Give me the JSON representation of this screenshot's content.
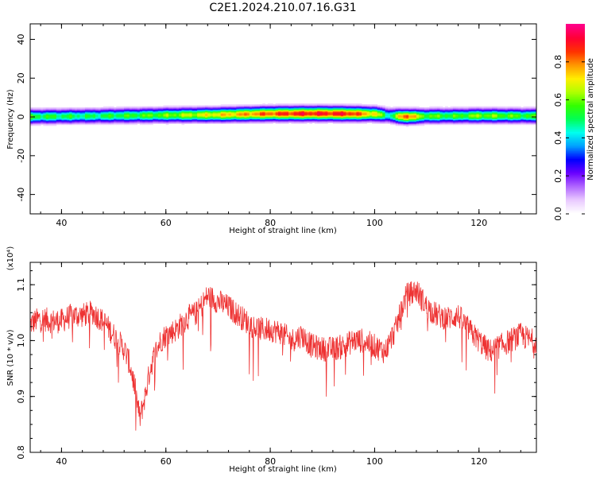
{
  "title": "C2E1.2024.210.07.16.G31",
  "chart_data": [
    {
      "type": "heatmap",
      "xlabel": "Height of straight line (km)",
      "ylabel": "Frequency (Hz)",
      "xlim": [
        34,
        131
      ],
      "ylim": [
        -50,
        48
      ],
      "xticks": [
        40,
        60,
        80,
        100,
        120
      ],
      "yticks": [
        -40,
        -20,
        0,
        20,
        40
      ],
      "colorbar": {
        "label": "Normalized spectral amplitude",
        "range": [
          0,
          1
        ],
        "ticks": [
          "0.0",
          "0.2",
          "0.4",
          "0.6",
          "0.8"
        ],
        "colors": [
          "#ffffff",
          "#e9c9ff",
          "#b066ff",
          "#6a00ff",
          "#0000ff",
          "#00a0ff",
          "#00ffee",
          "#00ff55",
          "#33ff00",
          "#b0ff00",
          "#ffee00",
          "#ff9900",
          "#ff3300",
          "#ff0033",
          "#ff0088"
        ]
      },
      "band_center_hz": [
        [
          34,
          0
        ],
        [
          45,
          0.3
        ],
        [
          60,
          0.8
        ],
        [
          70,
          1.0
        ],
        [
          80,
          1.5
        ],
        [
          90,
          1.6
        ],
        [
          100,
          1.4
        ],
        [
          103,
          0.5
        ],
        [
          106,
          0.0
        ],
        [
          110,
          0.3
        ],
        [
          120,
          0.5
        ],
        [
          131,
          0.4
        ]
      ],
      "peak_amplitude": [
        [
          34,
          0.55
        ],
        [
          45,
          0.5
        ],
        [
          60,
          0.6
        ],
        [
          70,
          0.72
        ],
        [
          78,
          0.82
        ],
        [
          85,
          0.9
        ],
        [
          95,
          0.9
        ],
        [
          100,
          0.72
        ],
        [
          103,
          0.45
        ],
        [
          106,
          0.9
        ],
        [
          109,
          0.6
        ],
        [
          115,
          0.55
        ],
        [
          120,
          0.62
        ],
        [
          131,
          0.55
        ]
      ]
    },
    {
      "type": "line",
      "xlabel": "Height of straight line (km)",
      "ylabel": "SNR (10 * v/v)",
      "multiplier": "(x10⁴)",
      "xlim": [
        34,
        131
      ],
      "ylim": [
        0.8,
        1.14
      ],
      "xticks": [
        40,
        60,
        80,
        100,
        120
      ],
      "yticks": [
        "0.8",
        "0.9",
        "1.0",
        "1.1"
      ],
      "color": "#ee3333",
      "series": [
        {
          "x": [
            34,
            36,
            38,
            40,
            42,
            44,
            46,
            48,
            50,
            52,
            53,
            54,
            55,
            56,
            57,
            58,
            59,
            60,
            62,
            64,
            66,
            68,
            70,
            72,
            74,
            76,
            78,
            80,
            82,
            84,
            86,
            88,
            90,
            92,
            94,
            96,
            98,
            100,
            102,
            104,
            106,
            108,
            110,
            112,
            114,
            116,
            118,
            120,
            122,
            124,
            126,
            128,
            130,
            131
          ],
          "y": [
            1.03,
            1.04,
            1.035,
            1.035,
            1.045,
            1.045,
            1.05,
            1.035,
            1.01,
            0.985,
            0.96,
            0.92,
            0.86,
            0.9,
            0.95,
            0.98,
            1.0,
            1.01,
            1.02,
            1.04,
            1.05,
            1.08,
            1.07,
            1.06,
            1.045,
            1.03,
            1.02,
            1.02,
            1.015,
            1.0,
            1.01,
            0.99,
            0.985,
            0.985,
            0.99,
            1.0,
            1.0,
            0.99,
            0.98,
            1.02,
            1.08,
            1.09,
            1.06,
            1.045,
            1.04,
            1.045,
            1.02,
            1.0,
            0.98,
            0.99,
            1.0,
            1.01,
            1.0,
            1.0
          ]
        }
      ]
    }
  ]
}
